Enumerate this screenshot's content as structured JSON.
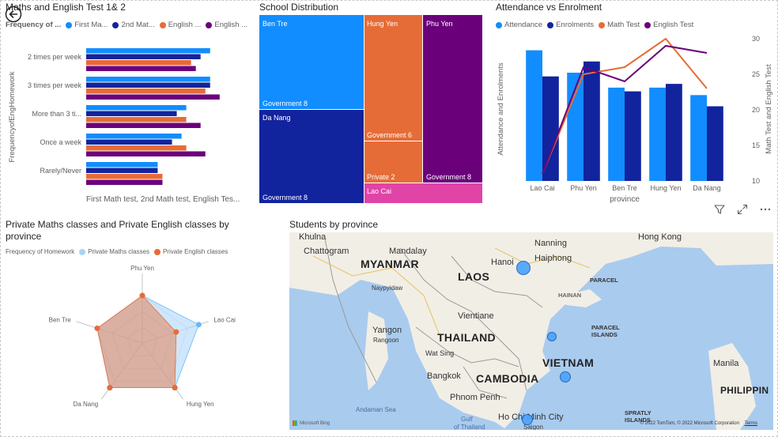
{
  "back_icon": "back-arrow-icon",
  "colors": {
    "first_math": "#118DFF",
    "second_math": "#12239E",
    "english1": "#E66C37",
    "english2": "#6B007B",
    "tree_pink": "#E044A7",
    "radar_maths": "#A7D4FA",
    "radar_english": "#E66C37",
    "map_water": "#A9CBEE",
    "map_land": "#F1EEE6"
  },
  "bar_visual": {
    "title": "Maths and English Test 1& 2",
    "legend_title": "Frequency of ...",
    "legend": [
      "First Ma...",
      "2nd Mat...",
      "English ...",
      "English ..."
    ],
    "ylabel": "FrequencyofEngHomework",
    "xlabel": "First Math test, 2nd Math test, English Tes..."
  },
  "treemap_visual": {
    "title": "School Distribution",
    "tiles": [
      {
        "name": "Ben Tre",
        "sub": "Government 8"
      },
      {
        "name": "Da Nang",
        "sub": "Government 8"
      },
      {
        "name": "Hung Yen",
        "sub": "Government 6",
        "sub2": "Private 2"
      },
      {
        "name": "Phu Yen",
        "sub": "Government 8"
      },
      {
        "name": "Lao Cai"
      }
    ]
  },
  "combo_visual": {
    "title": "Attendance vs Enrolment",
    "legend": [
      "Attendance",
      "Enrolments",
      "Math Test",
      "English Test"
    ],
    "ylabel_left": "Attendance and Enrolments",
    "ylabel_right": "Math Test and English Test",
    "xlabel": "province"
  },
  "radar_visual": {
    "title_line1": "Private Maths classes and Private English classes by",
    "title_line2": "province",
    "legend_title": "Frequency of Homework",
    "legend": [
      "Private Maths classes",
      "Private English classes"
    ]
  },
  "map_visual": {
    "title": "Students by province",
    "countries": [
      "MYANMAR",
      "LAOS",
      "THAILAND",
      "VIETNAM",
      "CAMBODIA",
      "PHILIPPIN"
    ],
    "cities": [
      "Khulna",
      "Chattogram",
      "Mandalay",
      "Nanning",
      "Hong Kong",
      "Hanoi",
      "Haiphong",
      "Naypyidaw",
      "Vientiane",
      "Yangon",
      "Rangoon",
      "Wat Sing",
      "Bangkok",
      "Phnom Penh",
      "Ho Chi Minh City",
      "Saigon",
      "Manila"
    ],
    "seas": [
      "Andaman Sea",
      "Gulf",
      "of Thailand"
    ],
    "islands": [
      "PARACEL",
      "ISLANDS",
      "SPRATLY",
      "ISLANDS"
    ],
    "regions": [
      "PARACEL",
      "HAINAN"
    ],
    "copyright": "© 2022 TomTom, © 2022 Microsoft Corporation",
    "terms": "Terms",
    "bing": "Microsoft Bing"
  },
  "chart_data": [
    {
      "type": "bar",
      "orientation": "horizontal",
      "title": "Maths and English Test 1& 2",
      "categories": [
        "2 times per week",
        "3 times per week",
        "More than 3 ti...",
        "Once a week",
        "Rarely/Never"
      ],
      "series": [
        {
          "name": "First Ma...",
          "values": [
            26,
            26,
            21,
            20,
            15
          ]
        },
        {
          "name": "2nd Mat...",
          "values": [
            24,
            26,
            19,
            18,
            15
          ]
        },
        {
          "name": "English ...",
          "values": [
            22,
            25,
            21,
            21,
            16
          ]
        },
        {
          "name": "English ...",
          "values": [
            23,
            28,
            24,
            25,
            16
          ]
        }
      ],
      "xlim": [
        0,
        34
      ],
      "xlabel": "First Math test, 2nd Math test, English Tes...",
      "ylabel": "FrequencyofEngHomework"
    },
    {
      "type": "treemap",
      "title": "School Distribution",
      "items": [
        {
          "province": "Ben Tre",
          "Government": 8
        },
        {
          "province": "Da Nang",
          "Government": 8
        },
        {
          "province": "Hung Yen",
          "Government": 6,
          "Private": 2
        },
        {
          "province": "Phu Yen",
          "Government": 8
        },
        {
          "province": "Lao Cai",
          "Government": 2
        }
      ]
    },
    {
      "type": "bar",
      "subtype": "combo-bar-line",
      "title": "Attendance vs Enrolment",
      "categories": [
        "Lao Cai",
        "Phu Yen",
        "Ben Tre",
        "Hung Yen",
        "Da Nang"
      ],
      "series": [
        {
          "name": "Attendance",
          "type": "bar",
          "values": [
            35,
            29,
            25,
            25,
            23
          ]
        },
        {
          "name": "Enrolments",
          "type": "bar",
          "values": [
            28,
            32,
            24,
            26,
            20
          ]
        },
        {
          "name": "Math Test",
          "type": "line",
          "axis": "right",
          "values": [
            11,
            25,
            26,
            30,
            23
          ]
        },
        {
          "name": "English Test",
          "type": "line",
          "axis": "right",
          "values": [
            11,
            26,
            24,
            29,
            28
          ]
        }
      ],
      "ylim_left": [
        0,
        40
      ],
      "ylim_right": [
        10,
        31
      ],
      "right_ticks": [
        10,
        15,
        20,
        25,
        30
      ],
      "xlabel": "province",
      "ylabel_left": "Attendance and Enrolments",
      "ylabel_right": "Math Test and English Test"
    },
    {
      "type": "radar",
      "title": "Private Maths classes and Private English classes by province",
      "categories": [
        "Phu Yen",
        "Lao Cai",
        "Hung Yen",
        "Da Nang",
        "Ben Tre"
      ],
      "series": [
        {
          "name": "Private Maths classes",
          "values": [
            0.6,
            0.75,
            0.7,
            0.7,
            0.6
          ]
        },
        {
          "name": "Private English classes",
          "values": [
            0.6,
            0.45,
            0.7,
            0.7,
            0.6
          ]
        }
      ],
      "rlim": [
        0,
        1
      ]
    },
    {
      "type": "scatter",
      "subtype": "map-bubbles",
      "title": "Students by province",
      "points": [
        {
          "location": "Hanoi area",
          "size": 2
        },
        {
          "location": "Central coast",
          "size": 1
        },
        {
          "location": "South-central",
          "size": 1.5
        },
        {
          "location": "Ho Chi Minh City area",
          "size": 1.5
        }
      ]
    }
  ]
}
